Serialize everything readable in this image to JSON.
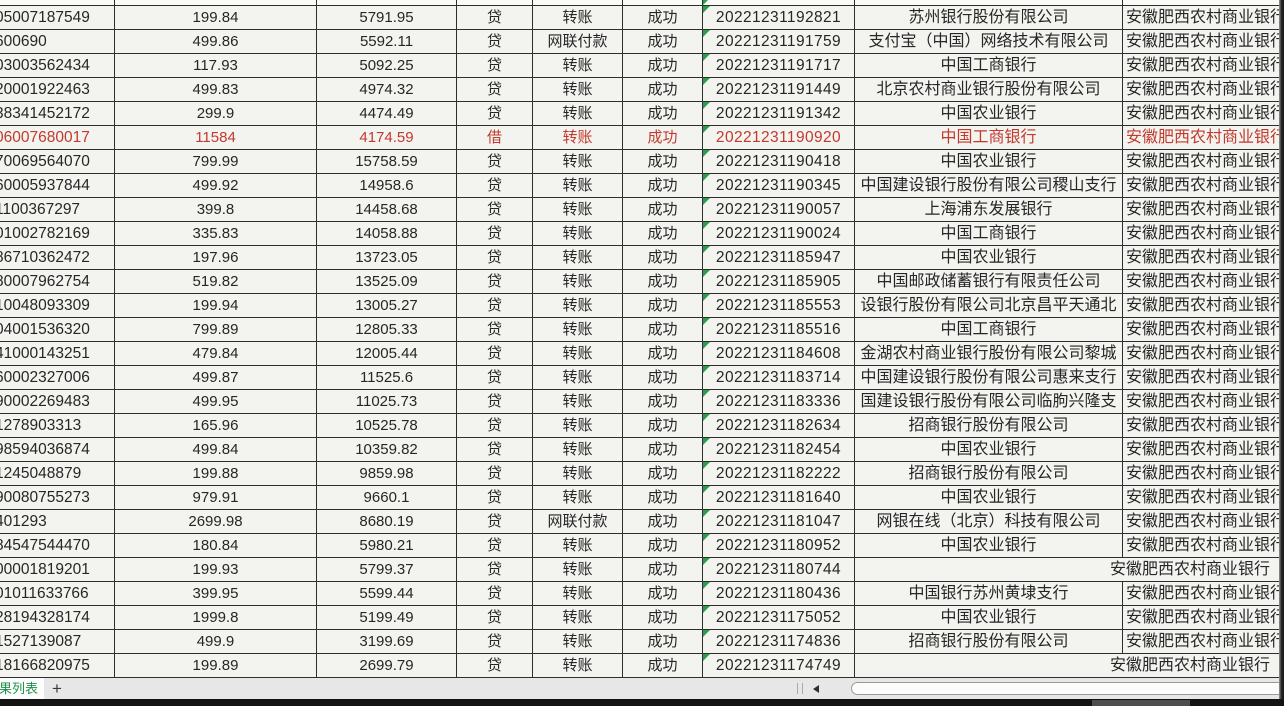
{
  "colors": {
    "grid_line": "#2e2e2e",
    "cell_background": "#f3f3f0",
    "highlight_text": "#c23a2c",
    "text_marker_green": "#2f9e4c",
    "tab_text_green": "#1f9248"
  },
  "sheet_tab": {
    "label": "果列表",
    "add_label": "+"
  },
  "table": {
    "rows": [
      {
        "account": "05007187549",
        "amount": "199.84",
        "balance": "5791.95",
        "direction": "贷",
        "method": "转账",
        "status": "成功",
        "time": "20221231192821",
        "bank": "苏州银行股份有限公司",
        "holder_bank": "安徽肥西农村商业银行",
        "highlighted": false
      },
      {
        "account": "600690",
        "amount": "499.86",
        "balance": "5592.11",
        "direction": "贷",
        "method": "网联付款",
        "status": "成功",
        "time": "20221231191759",
        "bank": "支付宝（中国）网络技术有限公司",
        "holder_bank": "安徽肥西农村商业银行",
        "highlighted": false
      },
      {
        "account": "03003562434",
        "amount": "117.93",
        "balance": "5092.25",
        "direction": "贷",
        "method": "转账",
        "status": "成功",
        "time": "20221231191717",
        "bank": "中国工商银行",
        "holder_bank": "安徽肥西农村商业银行",
        "highlighted": false
      },
      {
        "account": "20001922463",
        "amount": "499.83",
        "balance": "4974.32",
        "direction": "贷",
        "method": "转账",
        "status": "成功",
        "time": "20221231191449",
        "bank": "北京农村商业银行股份有限公司",
        "holder_bank": "安徽肥西农村商业银行",
        "highlighted": false
      },
      {
        "account": "38341452172",
        "amount": "299.9",
        "balance": "4474.49",
        "direction": "贷",
        "method": "转账",
        "status": "成功",
        "time": "20221231191342",
        "bank": "中国农业银行",
        "holder_bank": "安徽肥西农村商业银行",
        "highlighted": false
      },
      {
        "account": "06007680017",
        "amount": "11584",
        "balance": "4174.59",
        "direction": "借",
        "method": "转账",
        "status": "成功",
        "time": "20221231190920",
        "bank": "中国工商银行",
        "holder_bank": "安徽肥西农村商业银行",
        "highlighted": true
      },
      {
        "account": "70069564070",
        "amount": "799.99",
        "balance": "15758.59",
        "direction": "贷",
        "method": "转账",
        "status": "成功",
        "time": "20221231190418",
        "bank": "中国农业银行",
        "holder_bank": "安徽肥西农村商业银行",
        "highlighted": false
      },
      {
        "account": "60005937844",
        "amount": "499.92",
        "balance": "14958.6",
        "direction": "贷",
        "method": "转账",
        "status": "成功",
        "time": "20221231190345",
        "bank": "中国建设银行股份有限公司稷山支行",
        "holder_bank": "安徽肥西农村商业银行",
        "highlighted": false
      },
      {
        "account": "1100367297",
        "amount": "399.8",
        "balance": "14458.68",
        "direction": "贷",
        "method": "转账",
        "status": "成功",
        "time": "20221231190057",
        "bank": "上海浦东发展银行",
        "holder_bank": "安徽肥西农村商业银行",
        "highlighted": false
      },
      {
        "account": "01002782169",
        "amount": "335.83",
        "balance": "14058.88",
        "direction": "贷",
        "method": "转账",
        "status": "成功",
        "time": "20221231190024",
        "bank": "中国工商银行",
        "holder_bank": "安徽肥西农村商业银行",
        "highlighted": false
      },
      {
        "account": "86710362472",
        "amount": "197.96",
        "balance": "13723.05",
        "direction": "贷",
        "method": "转账",
        "status": "成功",
        "time": "20221231185947",
        "bank": "中国农业银行",
        "holder_bank": "安徽肥西农村商业银行",
        "highlighted": false
      },
      {
        "account": "80007962754",
        "amount": "519.82",
        "balance": "13525.09",
        "direction": "贷",
        "method": "转账",
        "status": "成功",
        "time": "20221231185905",
        "bank": "中国邮政储蓄银行有限责任公司",
        "holder_bank": "安徽肥西农村商业银行",
        "highlighted": false
      },
      {
        "account": "10048093309",
        "amount": "199.94",
        "balance": "13005.27",
        "direction": "贷",
        "method": "转账",
        "status": "成功",
        "time": "20221231185553",
        "bank": "设银行股份有限公司北京昌平天通北",
        "holder_bank": "安徽肥西农村商业银行",
        "highlighted": false
      },
      {
        "account": "04001536320",
        "amount": "799.89",
        "balance": "12805.33",
        "direction": "贷",
        "method": "转账",
        "status": "成功",
        "time": "20221231185516",
        "bank": "中国工商银行",
        "holder_bank": "安徽肥西农村商业银行",
        "highlighted": false
      },
      {
        "account": "41000143251",
        "amount": "479.84",
        "balance": "12005.44",
        "direction": "贷",
        "method": "转账",
        "status": "成功",
        "time": "20221231184608",
        "bank": "金湖农村商业银行股份有限公司黎城",
        "holder_bank": "安徽肥西农村商业银行",
        "highlighted": false
      },
      {
        "account": "60002327006",
        "amount": "499.87",
        "balance": "11525.6",
        "direction": "贷",
        "method": "转账",
        "status": "成功",
        "time": "20221231183714",
        "bank": "中国建设银行股份有限公司惠来支行",
        "holder_bank": "安徽肥西农村商业银行",
        "highlighted": false
      },
      {
        "account": "90002269483",
        "amount": "499.95",
        "balance": "11025.73",
        "direction": "贷",
        "method": "转账",
        "status": "成功",
        "time": "20221231183336",
        "bank": "国建设银行股份有限公司临朐兴隆支",
        "holder_bank": "安徽肥西农村商业银行",
        "highlighted": false
      },
      {
        "account": "1278903313",
        "amount": "165.96",
        "balance": "10525.78",
        "direction": "贷",
        "method": "转账",
        "status": "成功",
        "time": "20221231182634",
        "bank": "招商银行股份有限公司",
        "holder_bank": "安徽肥西农村商业银行",
        "highlighted": false
      },
      {
        "account": "98594036874",
        "amount": "499.84",
        "balance": "10359.82",
        "direction": "贷",
        "method": "转账",
        "status": "成功",
        "time": "20221231182454",
        "bank": "中国农业银行",
        "holder_bank": "安徽肥西农村商业银行",
        "highlighted": false
      },
      {
        "account": "1245048879",
        "amount": "199.88",
        "balance": "9859.98",
        "direction": "贷",
        "method": "转账",
        "status": "成功",
        "time": "20221231182222",
        "bank": "招商银行股份有限公司",
        "holder_bank": "安徽肥西农村商业银行",
        "highlighted": false
      },
      {
        "account": "90080755273",
        "amount": "979.91",
        "balance": "9660.1",
        "direction": "贷",
        "method": "转账",
        "status": "成功",
        "time": "20221231181640",
        "bank": "中国农业银行",
        "holder_bank": "安徽肥西农村商业银行",
        "highlighted": false
      },
      {
        "account": "401293",
        "amount": "2699.98",
        "balance": "8680.19",
        "direction": "贷",
        "method": "网联付款",
        "status": "成功",
        "time": "20221231181047",
        "bank": "网银在线（北京）科技有限公司",
        "holder_bank": "安徽肥西农村商业银行",
        "highlighted": false
      },
      {
        "account": "84547544470",
        "amount": "180.84",
        "balance": "5980.21",
        "direction": "贷",
        "method": "转账",
        "status": "成功",
        "time": "20221231180952",
        "bank": "中国农业银行",
        "holder_bank": "安徽肥西农村商业银行",
        "highlighted": false
      },
      {
        "account": "00001819201",
        "amount": "199.93",
        "balance": "5799.37",
        "direction": "贷",
        "method": "转账",
        "status": "成功",
        "time": "20221231180744",
        "bank": "",
        "holder_bank": "安徽肥西农村商业银行",
        "highlighted": false
      },
      {
        "account": "01011633766",
        "amount": "399.95",
        "balance": "5599.44",
        "direction": "贷",
        "method": "转账",
        "status": "成功",
        "time": "20221231180436",
        "bank": "中国银行苏州黄埭支行",
        "holder_bank": "安徽肥西农村商业银行",
        "highlighted": false
      },
      {
        "account": "28194328174",
        "amount": "1999.8",
        "balance": "5199.49",
        "direction": "贷",
        "method": "转账",
        "status": "成功",
        "time": "20221231175052",
        "bank": "中国农业银行",
        "holder_bank": "安徽肥西农村商业银行",
        "highlighted": false
      },
      {
        "account": "1527139087",
        "amount": "499.9",
        "balance": "3199.69",
        "direction": "贷",
        "method": "转账",
        "status": "成功",
        "time": "20221231174836",
        "bank": "招商银行股份有限公司",
        "holder_bank": "安徽肥西农村商业银行",
        "highlighted": false
      },
      {
        "account": "18166820975",
        "amount": "199.89",
        "balance": "2699.79",
        "direction": "贷",
        "method": "转账",
        "status": "成功",
        "time": "20221231174749",
        "bank": "",
        "holder_bank": "安徽肥西农村商业银行",
        "highlighted": false
      }
    ]
  }
}
